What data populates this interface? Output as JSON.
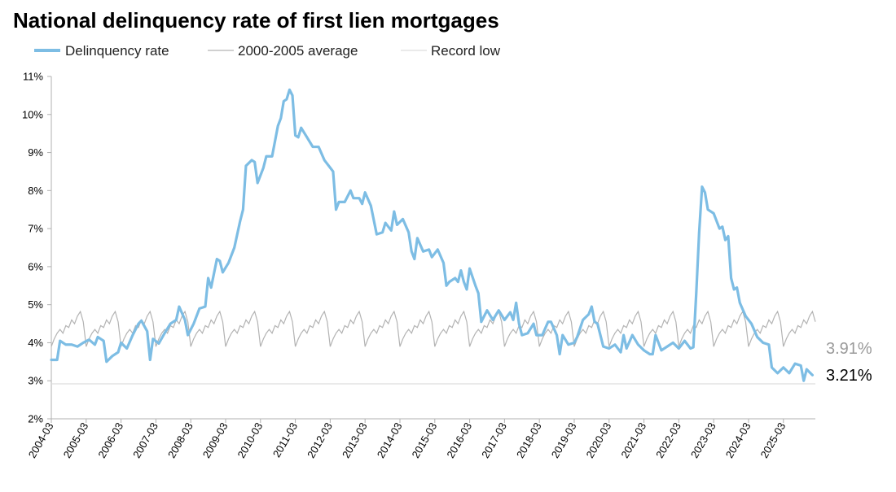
{
  "chart_data": {
    "type": "line",
    "title": "National delinquency rate of first lien mortgages",
    "xlabel": "",
    "ylabel": "",
    "ylim": [
      2,
      11
    ],
    "y_ticks": [
      "2%",
      "3%",
      "4%",
      "5%",
      "6%",
      "7%",
      "8%",
      "9%",
      "10%",
      "11%"
    ],
    "x_ticks": [
      "2004-03",
      "2005-03",
      "2006-03",
      "2007-03",
      "2008-03",
      "2009-03",
      "2010-03",
      "2011-03",
      "2012-03",
      "2013-03",
      "2014-03",
      "2015-03",
      "2016-03",
      "2017-03",
      "2018-03",
      "2019-03",
      "2020-03",
      "2021-03",
      "2022-03",
      "2023-03",
      "2024-03",
      "2025-03"
    ],
    "grid": false,
    "legend_position": "top-left",
    "colors": {
      "delinquency": "#7dbde4",
      "average": "#b3b3b3",
      "record_low": "#dddddd",
      "axis": "#b0b0b0"
    },
    "series": [
      {
        "name": "Delinquency rate",
        "points": [
          [
            "2004-03",
            3.55
          ],
          [
            "2004-05",
            3.55
          ],
          [
            "2004-06",
            4.05
          ],
          [
            "2004-08",
            3.95
          ],
          [
            "2004-10",
            3.95
          ],
          [
            "2004-12",
            3.9
          ],
          [
            "2005-02",
            4.0
          ],
          [
            "2005-04",
            4.08
          ],
          [
            "2005-06",
            3.95
          ],
          [
            "2005-07",
            4.15
          ],
          [
            "2005-09",
            4.05
          ],
          [
            "2005-10",
            3.5
          ],
          [
            "2005-12",
            3.65
          ],
          [
            "2006-02",
            3.75
          ],
          [
            "2006-03",
            4.0
          ],
          [
            "2006-05",
            3.85
          ],
          [
            "2006-07",
            4.2
          ],
          [
            "2006-09",
            4.5
          ],
          [
            "2006-10",
            4.58
          ],
          [
            "2006-12",
            4.3
          ],
          [
            "2007-01",
            3.55
          ],
          [
            "2007-02",
            4.1
          ],
          [
            "2007-04",
            3.98
          ],
          [
            "2007-06",
            4.25
          ],
          [
            "2007-08",
            4.5
          ],
          [
            "2007-10",
            4.6
          ],
          [
            "2007-11",
            4.95
          ],
          [
            "2008-01",
            4.6
          ],
          [
            "2008-02",
            4.2
          ],
          [
            "2008-04",
            4.5
          ],
          [
            "2008-06",
            4.9
          ],
          [
            "2008-08",
            4.95
          ],
          [
            "2008-09",
            5.7
          ],
          [
            "2008-10",
            5.45
          ],
          [
            "2008-12",
            6.2
          ],
          [
            "2009-01",
            6.15
          ],
          [
            "2009-02",
            5.85
          ],
          [
            "2009-04",
            6.1
          ],
          [
            "2009-06",
            6.5
          ],
          [
            "2009-08",
            7.2
          ],
          [
            "2009-09",
            7.5
          ],
          [
            "2009-10",
            8.65
          ],
          [
            "2009-12",
            8.8
          ],
          [
            "2010-01",
            8.75
          ],
          [
            "2010-02",
            8.2
          ],
          [
            "2010-04",
            8.6
          ],
          [
            "2010-05",
            8.9
          ],
          [
            "2010-07",
            8.9
          ],
          [
            "2010-09",
            9.7
          ],
          [
            "2010-10",
            9.9
          ],
          [
            "2010-11",
            10.35
          ],
          [
            "2010-12",
            10.4
          ],
          [
            "2011-01",
            10.65
          ],
          [
            "2011-02",
            10.5
          ],
          [
            "2011-03",
            9.45
          ],
          [
            "2011-04",
            9.4
          ],
          [
            "2011-05",
            9.65
          ],
          [
            "2011-07",
            9.4
          ],
          [
            "2011-09",
            9.15
          ],
          [
            "2011-11",
            9.15
          ],
          [
            "2012-01",
            8.8
          ],
          [
            "2012-03",
            8.6
          ],
          [
            "2012-04",
            8.5
          ],
          [
            "2012-05",
            7.5
          ],
          [
            "2012-06",
            7.7
          ],
          [
            "2012-08",
            7.7
          ],
          [
            "2012-10",
            8.0
          ],
          [
            "2012-11",
            7.8
          ],
          [
            "2013-01",
            7.8
          ],
          [
            "2013-02",
            7.65
          ],
          [
            "2013-03",
            7.95
          ],
          [
            "2013-05",
            7.6
          ],
          [
            "2013-07",
            6.85
          ],
          [
            "2013-09",
            6.9
          ],
          [
            "2013-10",
            7.15
          ],
          [
            "2013-12",
            6.95
          ],
          [
            "2014-01",
            7.45
          ],
          [
            "2014-02",
            7.1
          ],
          [
            "2014-04",
            7.25
          ],
          [
            "2014-06",
            6.9
          ],
          [
            "2014-07",
            6.4
          ],
          [
            "2014-08",
            6.2
          ],
          [
            "2014-09",
            6.75
          ],
          [
            "2014-11",
            6.4
          ],
          [
            "2015-01",
            6.45
          ],
          [
            "2015-02",
            6.25
          ],
          [
            "2015-04",
            6.45
          ],
          [
            "2015-06",
            6.1
          ],
          [
            "2015-07",
            5.5
          ],
          [
            "2015-08",
            5.6
          ],
          [
            "2015-10",
            5.7
          ],
          [
            "2015-11",
            5.6
          ],
          [
            "2015-12",
            5.9
          ],
          [
            "2016-01",
            5.6
          ],
          [
            "2016-02",
            5.4
          ],
          [
            "2016-03",
            5.95
          ],
          [
            "2016-05",
            5.5
          ],
          [
            "2016-06",
            5.3
          ],
          [
            "2016-07",
            4.55
          ],
          [
            "2016-09",
            4.85
          ],
          [
            "2016-11",
            4.6
          ],
          [
            "2017-01",
            4.85
          ],
          [
            "2017-03",
            4.6
          ],
          [
            "2017-05",
            4.8
          ],
          [
            "2017-06",
            4.6
          ],
          [
            "2017-07",
            5.05
          ],
          [
            "2017-08",
            4.5
          ],
          [
            "2017-09",
            4.2
          ],
          [
            "2017-11",
            4.25
          ],
          [
            "2018-01",
            4.5
          ],
          [
            "2018-02",
            4.2
          ],
          [
            "2018-04",
            4.2
          ],
          [
            "2018-06",
            4.55
          ],
          [
            "2018-07",
            4.55
          ],
          [
            "2018-09",
            4.2
          ],
          [
            "2018-10",
            3.7
          ],
          [
            "2018-11",
            4.2
          ],
          [
            "2019-01",
            3.95
          ],
          [
            "2019-03",
            4.0
          ],
          [
            "2019-04",
            4.15
          ],
          [
            "2019-06",
            4.6
          ],
          [
            "2019-08",
            4.75
          ],
          [
            "2019-09",
            4.95
          ],
          [
            "2019-10",
            4.55
          ],
          [
            "2019-11",
            4.5
          ],
          [
            "2020-01",
            3.9
          ],
          [
            "2020-03",
            3.85
          ],
          [
            "2020-05",
            3.95
          ],
          [
            "2020-06",
            3.85
          ],
          [
            "2020-07",
            3.75
          ],
          [
            "2020-08",
            4.2
          ],
          [
            "2020-09",
            3.85
          ],
          [
            "2020-11",
            4.2
          ],
          [
            "2021-01",
            3.95
          ],
          [
            "2021-03",
            3.8
          ],
          [
            "2021-05",
            3.7
          ],
          [
            "2021-06",
            3.7
          ],
          [
            "2021-07",
            4.2
          ],
          [
            "2021-09",
            3.8
          ],
          [
            "2021-11",
            3.9
          ],
          [
            "2022-01",
            4.0
          ],
          [
            "2022-03",
            3.85
          ],
          [
            "2022-05",
            4.05
          ],
          [
            "2022-06",
            3.95
          ],
          [
            "2022-07",
            3.85
          ],
          [
            "2022-08",
            3.88
          ],
          [
            "2022-09",
            5.3
          ],
          [
            "2022-10",
            6.9
          ],
          [
            "2022-11",
            8.1
          ],
          [
            "2022-12",
            7.95
          ],
          [
            "2023-01",
            7.5
          ],
          [
            "2023-03",
            7.4
          ],
          [
            "2023-05",
            7.0
          ],
          [
            "2023-06",
            7.05
          ],
          [
            "2023-07",
            6.7
          ],
          [
            "2023-08",
            6.8
          ],
          [
            "2023-09",
            5.7
          ],
          [
            "2023-10",
            5.4
          ],
          [
            "2023-11",
            5.45
          ],
          [
            "2023-12",
            5.05
          ],
          [
            "2024-02",
            4.7
          ],
          [
            "2024-04",
            4.5
          ],
          [
            "2024-06",
            4.15
          ],
          [
            "2024-08",
            4.0
          ],
          [
            "2024-10",
            3.95
          ],
          [
            "2024-11",
            3.35
          ],
          [
            "2025-01",
            3.2
          ],
          [
            "2025-03",
            3.35
          ],
          [
            "2025-05",
            3.2
          ],
          [
            "2025-07",
            3.45
          ],
          [
            "2025-09",
            3.4
          ],
          [
            "2025-10",
            3.0
          ],
          [
            "2025-11",
            3.3
          ],
          [
            "2026-01",
            3.15
          ]
        ]
      },
      {
        "name": "2000-2005 average",
        "cycle": [
          3.9,
          4.1,
          4.25,
          4.35,
          4.25,
          4.45,
          4.4,
          4.6,
          4.5,
          4.7,
          4.82,
          4.55
        ]
      },
      {
        "name": "Record low",
        "value": 2.92
      }
    ],
    "end_labels": [
      {
        "text": "3.91%",
        "color": "#9a9a9a"
      },
      {
        "text": "3.21%",
        "color": "#000000"
      }
    ]
  }
}
